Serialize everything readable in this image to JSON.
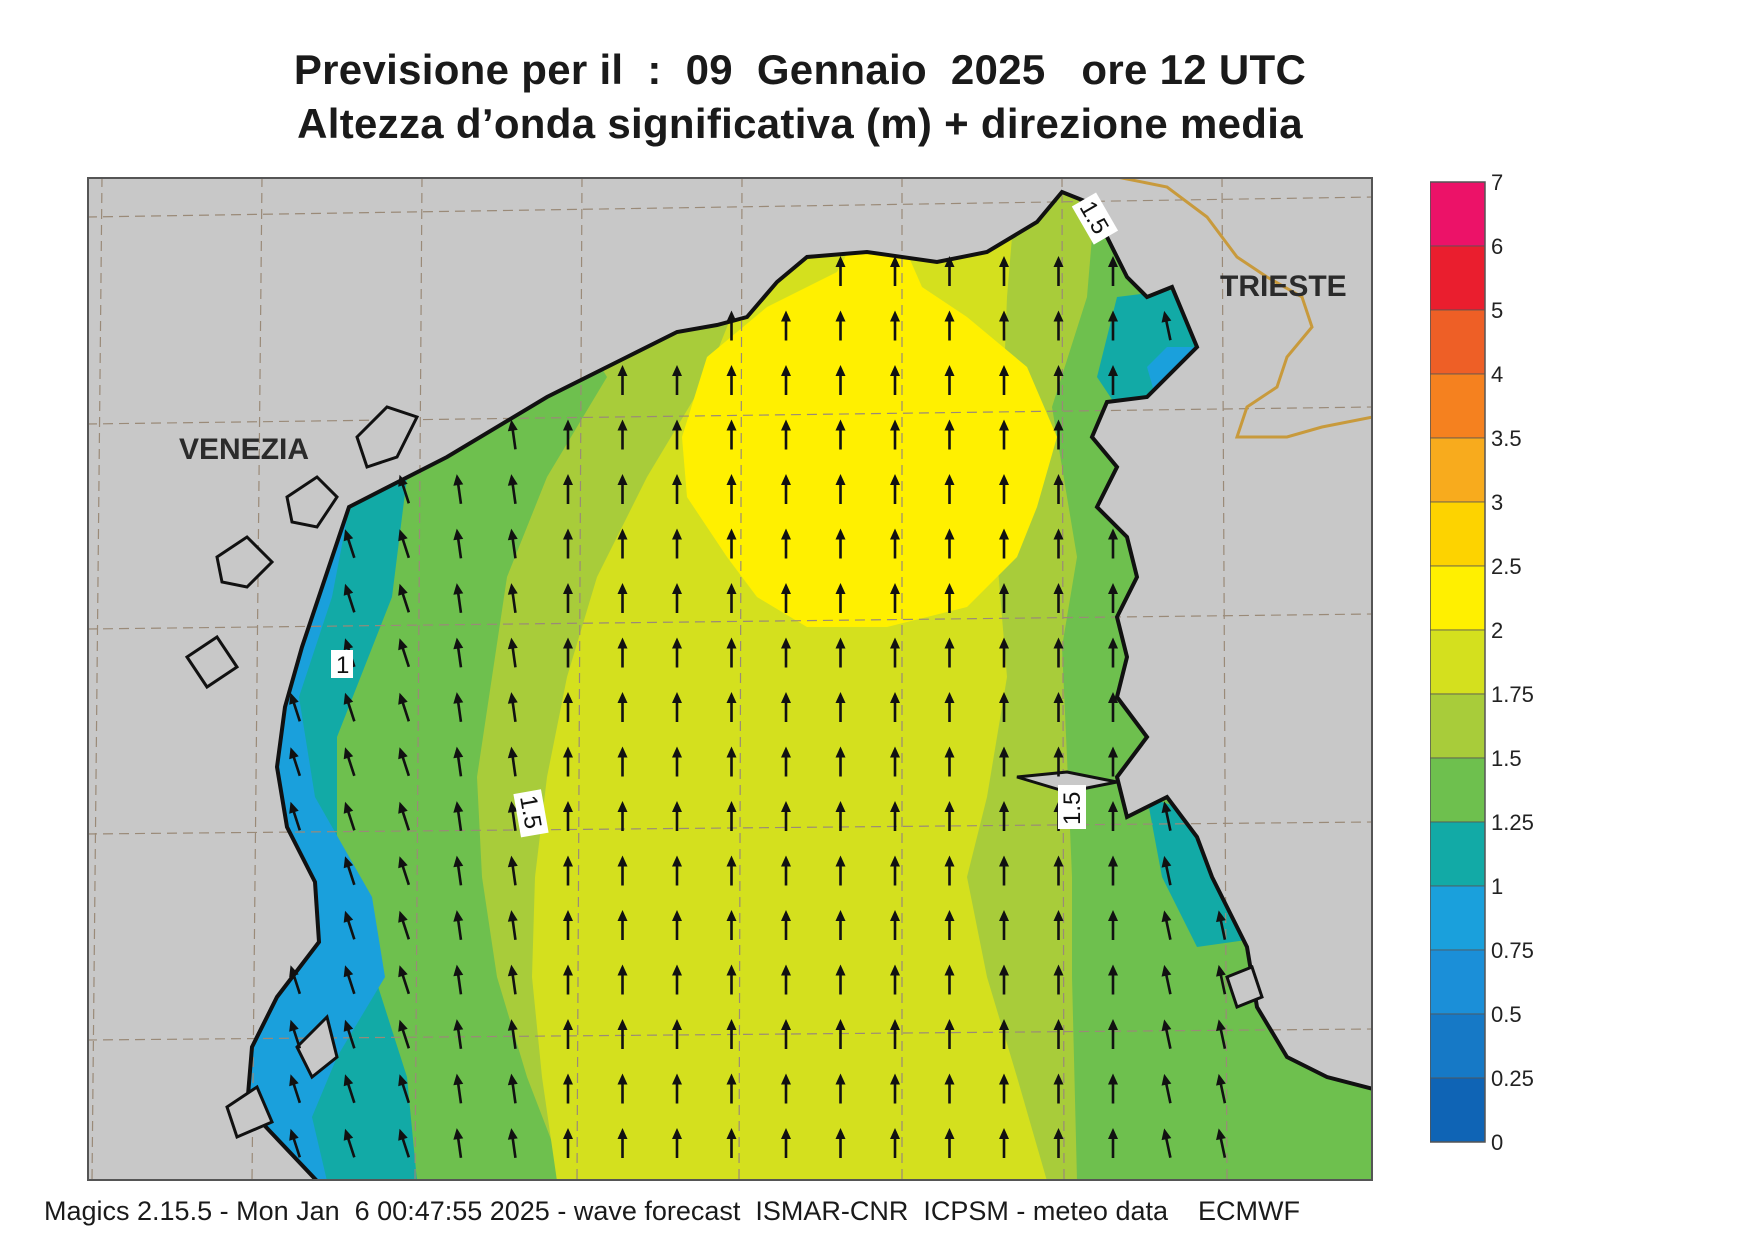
{
  "title": {
    "line1": "Previsione per il  :  09  Gennaio  2025   ore 12 UTC",
    "line2": "Altezza d’onda significativa (m) + direzione media"
  },
  "map": {
    "places": {
      "venezia": "VENEZIA",
      "trieste": "TRIESTE"
    },
    "contour_labels": {
      "west_1": "1",
      "west_1_5": "1.5",
      "east_1_5": "1.5",
      "north_1_5": "1.5"
    },
    "mean_wave_direction": "north",
    "colors": {
      "land": "#c8c8c8",
      "coast": "#111111",
      "grid": "#9a8a78",
      "border": "#c89a3c",
      "band_0_75_1": "#1aa0dc",
      "band_1_1_25": "#12aaa6",
      "band_1_25_1_5": "#6ec04e",
      "band_1_5_1_75": "#a8cc3a",
      "band_1_75_2": "#d4e01e",
      "band_2_2_5": "#fff000"
    }
  },
  "legend": {
    "levels": [
      {
        "label": "7",
        "color": "#ec1268"
      },
      {
        "label": "6",
        "color": "#ea1e2e"
      },
      {
        "label": "5",
        "color": "#ee5f26"
      },
      {
        "label": "4",
        "color": "#f5811f"
      },
      {
        "label": "3.5",
        "color": "#f8ab1d"
      },
      {
        "label": "3",
        "color": "#fdd300"
      },
      {
        "label": "2.5",
        "color": "#fff000"
      },
      {
        "label": "2",
        "color": "#d4e01e"
      },
      {
        "label": "1.75",
        "color": "#a8cc3a"
      },
      {
        "label": "1.5",
        "color": "#6ec04e"
      },
      {
        "label": "1.25",
        "color": "#12aaa6"
      },
      {
        "label": "1",
        "color": "#1aa0dc"
      },
      {
        "label": "0.75",
        "color": "#1b8fd8"
      },
      {
        "label": "0.5",
        "color": "#1679c6"
      },
      {
        "label": "0.25",
        "color": "#0f64b5"
      }
    ],
    "bottom_label": "0"
  },
  "footer": {
    "text": "Magics 2.15.5 - Mon Jan  6 00:47:55 2025 - wave forecast  ISMAR-CNR  ICPSM - meteo data    ECMWF"
  }
}
